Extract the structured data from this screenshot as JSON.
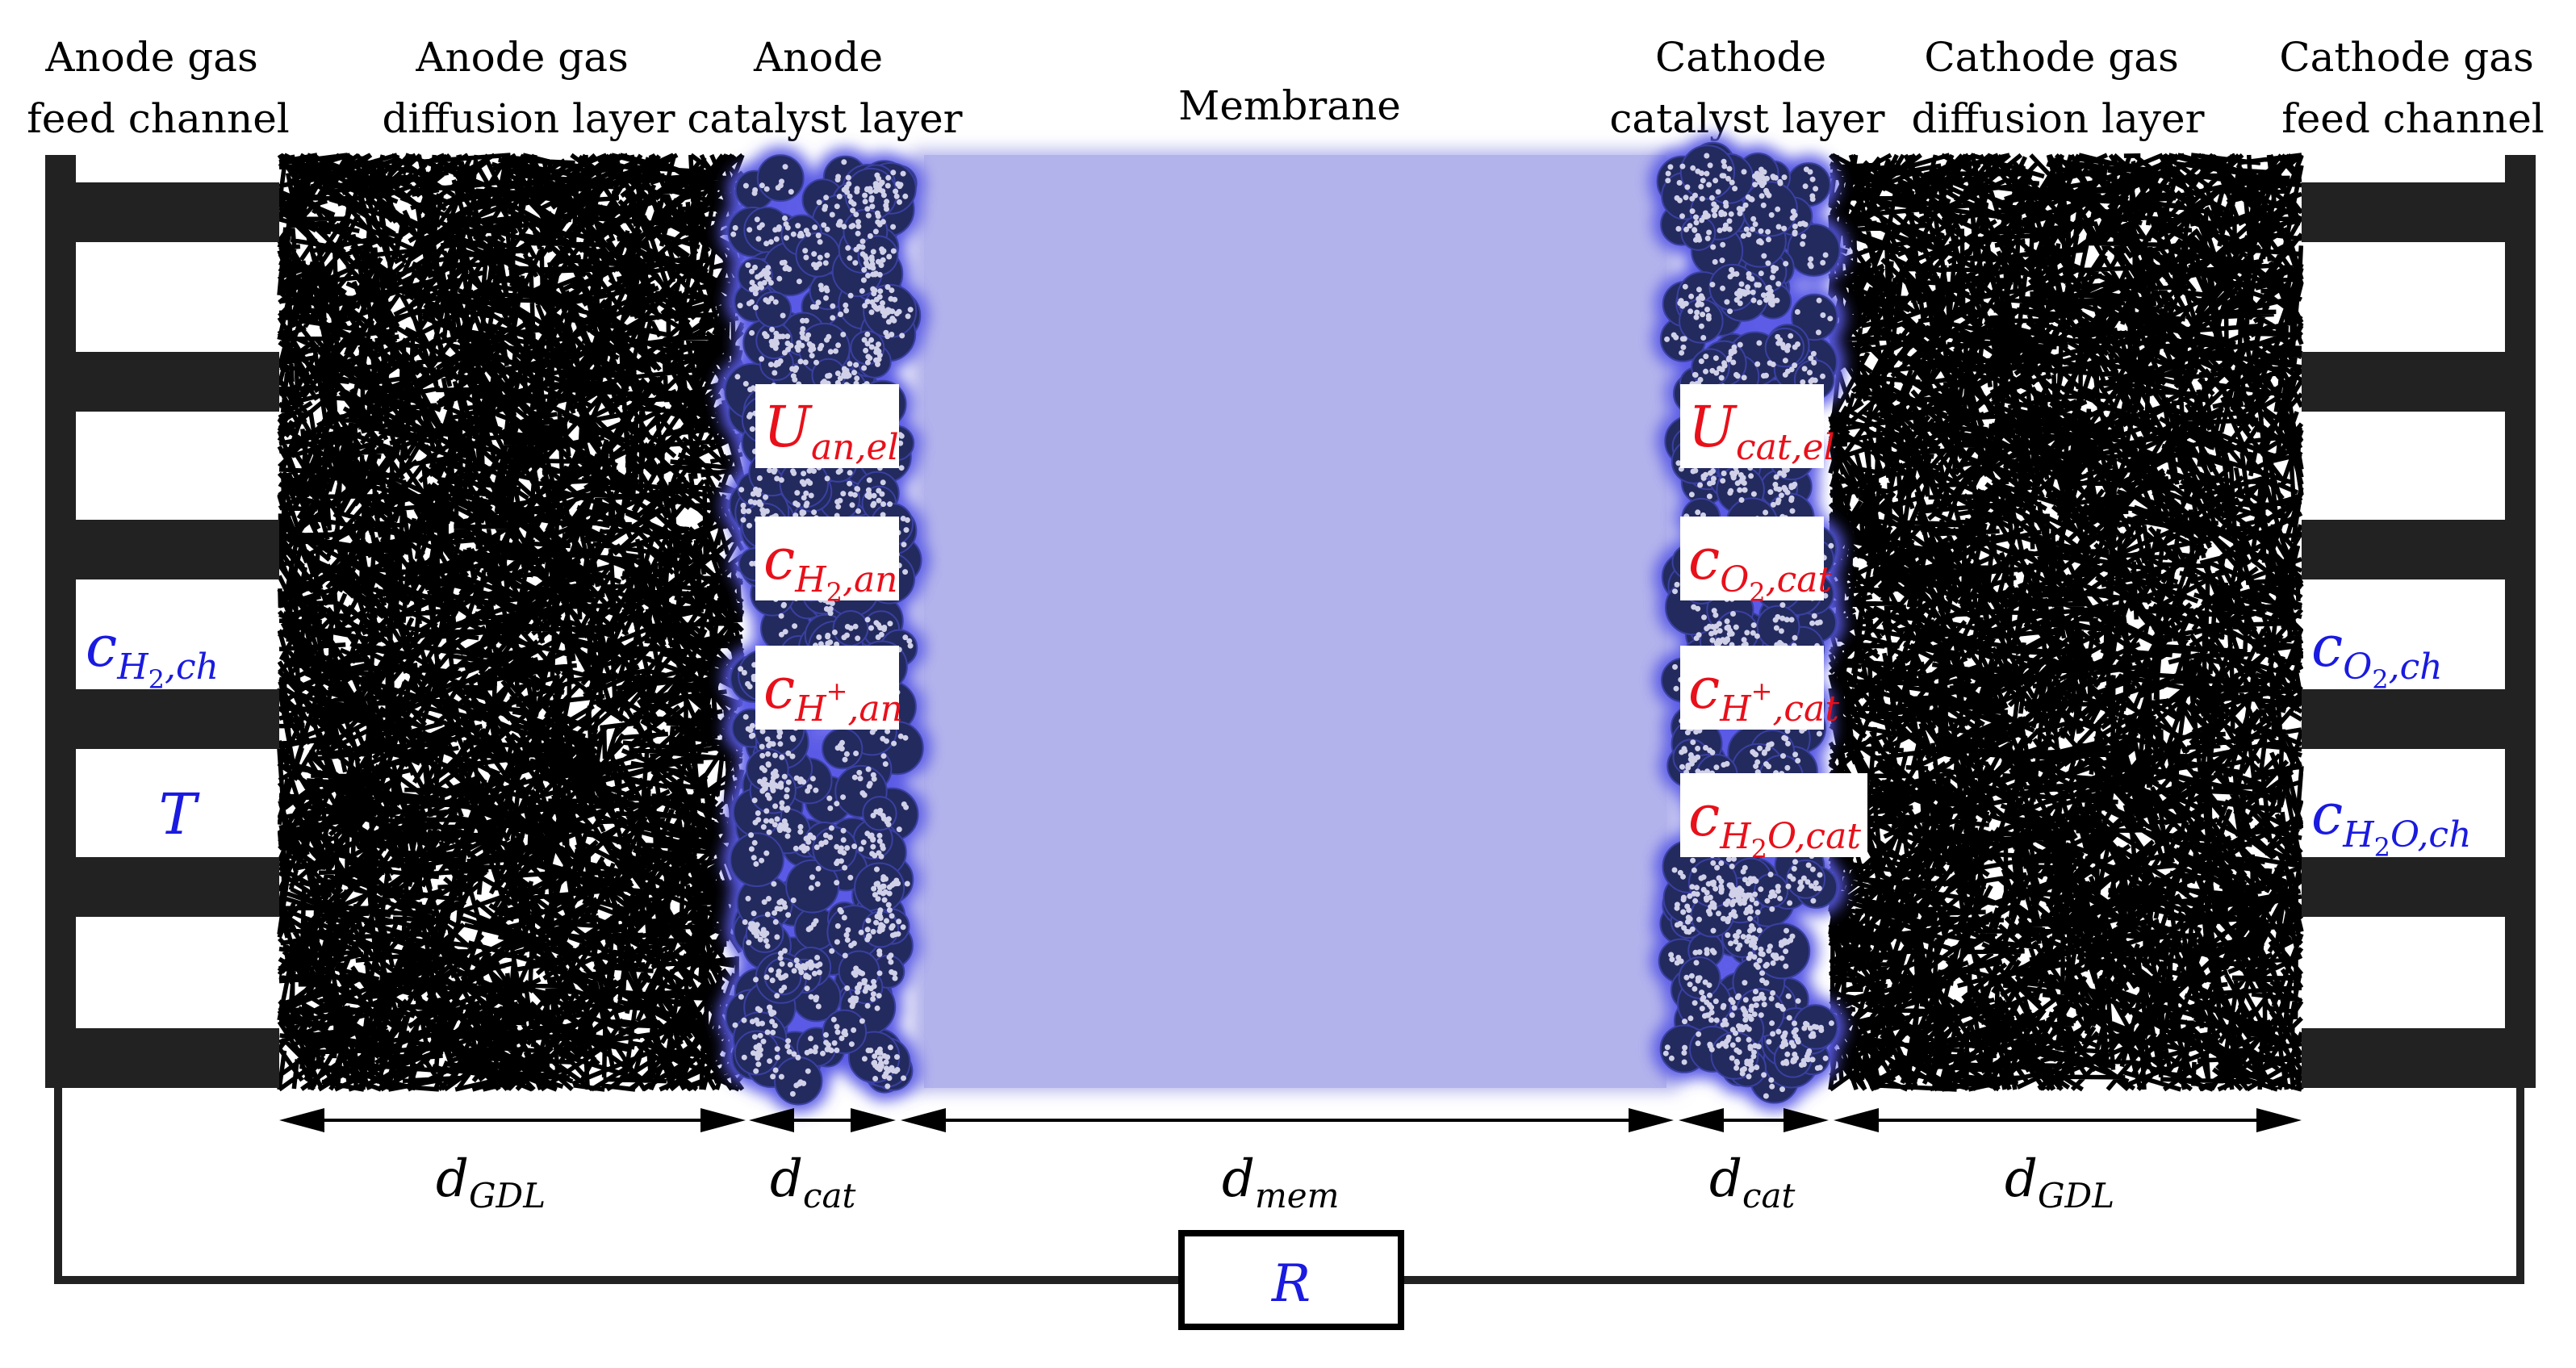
{
  "colors": {
    "membrane": "#b3b3ec",
    "catalyst_particle": "#232a5e",
    "catalyst_glow": "#5a5ae6",
    "ionomer_dot": "#d0d0e8",
    "fiber": "#000000",
    "channel_bar": "#222222",
    "variable_red": "#e8101a",
    "variable_blue": "#1a1ae0"
  },
  "headers": {
    "anode_channel": [
      "Anode gas",
      "feed channel"
    ],
    "anode_gdl": [
      "Anode gas",
      "diffusion layer"
    ],
    "anode_cat": [
      "Anode",
      "catalyst layer"
    ],
    "membrane": [
      "Membrane"
    ],
    "cathode_cat": [
      "Cathode",
      "catalyst layer"
    ],
    "cathode_gdl": [
      "Cathode gas",
      "diffusion layer"
    ],
    "cathode_channel": [
      "Cathode gas",
      "feed channel"
    ]
  },
  "dimensions": {
    "gdl_left": {
      "main": "d",
      "sub": "GDL"
    },
    "cat_left": {
      "main": "d",
      "sub": "cat"
    },
    "mem": {
      "main": "d",
      "sub": "mem"
    },
    "cat_right": {
      "main": "d",
      "sub": "cat"
    },
    "gdl_right": {
      "main": "d",
      "sub": "GDL"
    }
  },
  "variables": {
    "anode_cat": [
      {
        "main": "U",
        "sub": "an,el"
      },
      {
        "main": "c",
        "sub_parts": [
          {
            "t": "H",
            "u": false
          },
          {
            "t": "2",
            "u": true,
            "s": "sub"
          },
          {
            "t": ",an",
            "u": false
          }
        ]
      },
      {
        "main": "c",
        "sub_parts": [
          {
            "t": "H",
            "u": false
          },
          {
            "t": "+",
            "u": true,
            "s": "sup"
          },
          {
            "t": ",an",
            "u": false
          }
        ]
      }
    ],
    "cathode_cat": [
      {
        "main": "U",
        "sub": "cat,el"
      },
      {
        "main": "c",
        "sub_parts": [
          {
            "t": "O",
            "u": false
          },
          {
            "t": "2",
            "u": true,
            "s": "sub"
          },
          {
            "t": ",cat",
            "u": false
          }
        ]
      },
      {
        "main": "c",
        "sub_parts": [
          {
            "t": "H",
            "u": false
          },
          {
            "t": "+",
            "u": true,
            "s": "sup"
          },
          {
            "t": ",cat",
            "u": false
          }
        ]
      },
      {
        "main": "c",
        "sub_parts": [
          {
            "t": "H",
            "u": false
          },
          {
            "t": "2",
            "u": true,
            "s": "sub"
          },
          {
            "t": "O,cat",
            "u": false
          }
        ]
      }
    ],
    "anode_channel": [
      {
        "main": "c",
        "sub_parts": [
          {
            "t": "H",
            "u": false
          },
          {
            "t": "2",
            "u": true,
            "s": "sub"
          },
          {
            "t": ",ch",
            "u": false
          }
        ]
      },
      {
        "main": "T"
      }
    ],
    "cathode_channel": [
      {
        "main": "c",
        "sub_parts": [
          {
            "t": "O",
            "u": false
          },
          {
            "t": "2",
            "u": true,
            "s": "sub"
          },
          {
            "t": ",ch",
            "u": false
          }
        ]
      },
      {
        "main": "c",
        "sub_parts": [
          {
            "t": "H",
            "u": false
          },
          {
            "t": "2",
            "u": true,
            "s": "sub"
          },
          {
            "t": "O,ch",
            "u": false
          }
        ]
      }
    ]
  },
  "resistor": {
    "main": "R"
  }
}
